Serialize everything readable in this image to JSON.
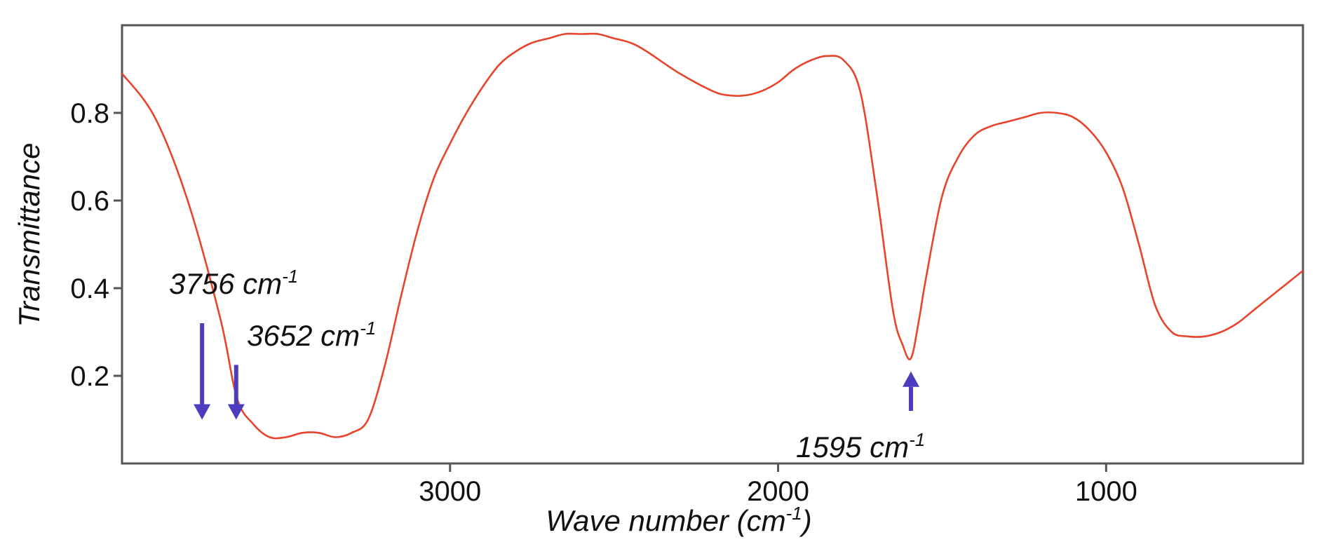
{
  "chart_data": {
    "type": "line",
    "title": "",
    "xlabel": "Wave number (cm",
    "xlabel_sup": "-1",
    "xlabel_tail": ")",
    "ylabel": "Transmittance",
    "x_reversed": true,
    "xlim": [
      4000,
      400
    ],
    "ylim": [
      0.0,
      1.0
    ],
    "grid": false,
    "xticks": [
      3000,
      2000,
      1000
    ],
    "xtick_labels": [
      "3000",
      "2000",
      "1000"
    ],
    "yticks": [
      0.2,
      0.4,
      0.6,
      0.8
    ],
    "ytick_labels": [
      "0.2",
      "0.4",
      "0.6",
      "0.8"
    ],
    "colors": {
      "line": "#e8442c",
      "arrow": "#4b3dbd",
      "frame": "#555555"
    },
    "series": [
      {
        "x": [
          4000,
          3900,
          3800,
          3700,
          3650,
          3600,
          3550,
          3500,
          3450,
          3400,
          3350,
          3300,
          3250,
          3200,
          3150,
          3100,
          3050,
          3000,
          2950,
          2900,
          2850,
          2800,
          2750,
          2700,
          2650,
          2600,
          2550,
          2500,
          2450,
          2400,
          2300,
          2200,
          2150,
          2100,
          2050,
          2000,
          1950,
          1900,
          1850,
          1800,
          1750,
          1700,
          1650,
          1620,
          1595,
          1570,
          1550,
          1500,
          1450,
          1400,
          1350,
          1300,
          1250,
          1200,
          1150,
          1100,
          1050,
          1000,
          950,
          900,
          850,
          800,
          750,
          700,
          650,
          600,
          550,
          500,
          450,
          400
        ],
        "y": [
          0.89,
          0.79,
          0.6,
          0.33,
          0.15,
          0.09,
          0.06,
          0.06,
          0.07,
          0.07,
          0.06,
          0.07,
          0.1,
          0.22,
          0.38,
          0.53,
          0.65,
          0.73,
          0.8,
          0.86,
          0.91,
          0.94,
          0.96,
          0.97,
          0.98,
          0.98,
          0.98,
          0.97,
          0.96,
          0.94,
          0.89,
          0.85,
          0.84,
          0.84,
          0.85,
          0.87,
          0.9,
          0.92,
          0.93,
          0.92,
          0.85,
          0.62,
          0.35,
          0.27,
          0.24,
          0.33,
          0.42,
          0.61,
          0.7,
          0.75,
          0.77,
          0.78,
          0.79,
          0.8,
          0.8,
          0.79,
          0.76,
          0.71,
          0.63,
          0.5,
          0.36,
          0.3,
          0.29,
          0.29,
          0.3,
          0.32,
          0.35,
          0.38,
          0.41,
          0.44
        ]
      }
    ],
    "annotations": [
      {
        "label": "3756 cm",
        "sup": "-1",
        "x": 3756,
        "arrow": "down",
        "arrow_from_y": 0.32,
        "arrow_to_y": 0.1
      },
      {
        "label": "3652 cm",
        "sup": "-1",
        "x": 3652,
        "arrow": "down",
        "arrow_from_y": 0.225,
        "arrow_to_y": 0.1
      },
      {
        "label": "1595 cm",
        "sup": "-1",
        "x": 1595,
        "arrow": "up",
        "arrow_from_y": 0.12,
        "arrow_to_y": 0.21
      }
    ]
  }
}
